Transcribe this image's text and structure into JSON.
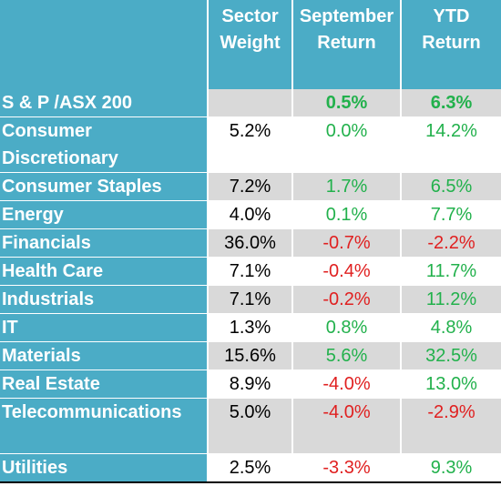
{
  "headers": {
    "col1": "",
    "col2": "Sector Weight",
    "col3": "September Return",
    "col4": "YTD Return"
  },
  "colors": {
    "header_bg": "#4bacc6",
    "positive": "#22b14c",
    "negative": "#e02020",
    "shade": "#d9d9d9"
  },
  "rows": [
    {
      "sector": "S & P /ASX 200",
      "weight": "",
      "september": "0.5%",
      "ytd": "6.3%"
    },
    {
      "sector": "Consumer Discretionary",
      "weight": "5.2%",
      "september": "0.0%",
      "ytd": "14.2%"
    },
    {
      "sector": "Consumer Staples",
      "weight": "7.2%",
      "september": "1.7%",
      "ytd": "6.5%"
    },
    {
      "sector": "Energy",
      "weight": "4.0%",
      "september": "0.1%",
      "ytd": "7.7%"
    },
    {
      "sector": "Financials",
      "weight": "36.0%",
      "september": "-0.7%",
      "ytd": "-2.2%"
    },
    {
      "sector": "Health Care",
      "weight": "7.1%",
      "september": "-0.4%",
      "ytd": "11.7%"
    },
    {
      "sector": "Industrials",
      "weight": "7.1%",
      "september": "-0.2%",
      "ytd": "11.2%"
    },
    {
      "sector": "IT",
      "weight": "1.3%",
      "september": "0.8%",
      "ytd": "4.8%"
    },
    {
      "sector": "Materials",
      "weight": "15.6%",
      "september": "5.6%",
      "ytd": "32.5%"
    },
    {
      "sector": "Real Estate",
      "weight": "8.9%",
      "september": "-4.0%",
      "ytd": "13.0%"
    },
    {
      "sector": "Telecommunications",
      "weight": "5.0%",
      "september": "-4.0%",
      "ytd": "-2.9%"
    },
    {
      "sector": "Utilities",
      "weight": "2.5%",
      "september": "-3.3%",
      "ytd": "9.3%"
    }
  ]
}
